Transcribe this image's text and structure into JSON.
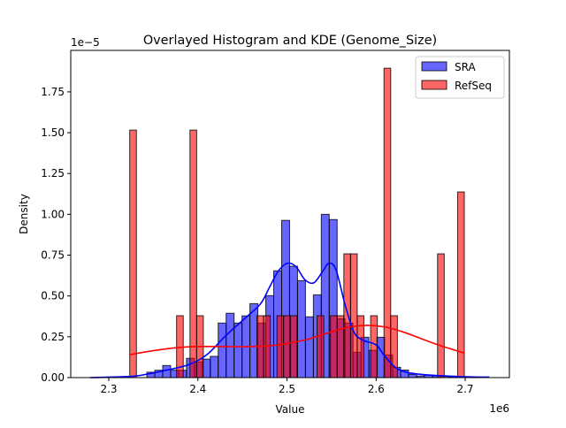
{
  "chart_data": {
    "type": "bar",
    "title": "Overlayed Histogram and KDE (Genome_Size)",
    "xlabel": "Value",
    "ylabel": "Density",
    "x_offset_label": "1e6",
    "y_offset_label": "1e−5",
    "xlim": [
      2.2573,
      2.7496
    ],
    "ylim": [
      0,
      2.004
    ],
    "x_ticks": [
      2.3,
      2.4,
      2.5,
      2.6,
      2.7
    ],
    "x_tick_labels": [
      "2.3",
      "2.4",
      "2.5",
      "2.6",
      "2.7"
    ],
    "y_ticks": [
      0,
      0.25,
      0.5,
      0.75,
      1.0,
      1.25,
      1.5,
      1.75
    ],
    "y_tick_labels": [
      "0.00",
      "0.25",
      "0.50",
      "0.75",
      "1.00",
      "1.25",
      "1.50",
      "1.75"
    ],
    "grid": false,
    "legend_position": "top-right",
    "series": [
      {
        "name": "SRA",
        "color": "#0000ff",
        "fill_alpha": 0.6,
        "bin_start": 2.3427,
        "bin_width": 0.0089,
        "values": [
          0.033,
          0.045,
          0.074,
          0.045,
          0.045,
          0.118,
          0.096,
          0.113,
          0.13,
          0.334,
          0.394,
          0.334,
          0.378,
          0.453,
          0.334,
          0.502,
          0.654,
          0.963,
          0.682,
          0.594,
          0.372,
          0.507,
          1.0,
          0.968,
          0.36,
          0.334,
          0.155,
          0.247,
          0.167,
          0.247,
          0.139,
          0.063,
          0.046,
          0.02,
          0.01,
          0.015,
          0.012,
          0.008,
          0.005,
          0.004,
          0.003,
          0.002,
          0.002
        ],
        "kde": {
          "x": [
            2.279,
            2.3,
            2.33,
            2.36,
            2.39,
            2.41,
            2.43,
            2.45,
            2.47,
            2.48,
            2.49,
            2.5,
            2.51,
            2.52,
            2.53,
            2.54,
            2.547,
            2.555,
            2.565,
            2.575,
            2.585,
            2.6,
            2.61,
            2.625,
            2.65,
            2.7,
            2.727
          ],
          "y": [
            0.0,
            0.003,
            0.01,
            0.04,
            0.08,
            0.14,
            0.25,
            0.35,
            0.45,
            0.55,
            0.65,
            0.7,
            0.68,
            0.6,
            0.58,
            0.65,
            0.7,
            0.66,
            0.45,
            0.28,
            0.23,
            0.2,
            0.13,
            0.05,
            0.02,
            0.005,
            0.003
          ]
        }
      },
      {
        "name": "RefSeq",
        "color": "#ff0000",
        "fill_alpha": 0.6,
        "bin_start": 2.3235,
        "bin_width": 0.00751,
        "values": [
          1.516,
          0,
          0,
          0,
          0,
          0,
          0,
          0.379,
          0,
          1.516,
          0.379,
          0,
          0,
          0,
          0,
          0,
          0,
          0,
          0,
          0.379,
          0.379,
          0,
          0.379,
          0.379,
          0.379,
          0,
          0,
          0,
          0.379,
          0,
          0.379,
          0.379,
          0.758,
          0.758,
          0.379,
          0,
          0.379,
          0,
          1.895,
          0.379,
          0,
          0,
          0,
          0,
          0,
          0,
          0.758,
          0,
          0,
          1.137
        ],
        "kde": {
          "x": [
            2.323,
            2.35,
            2.38,
            2.4,
            2.43,
            2.46,
            2.49,
            2.52,
            2.55,
            2.57,
            2.59,
            2.61,
            2.63,
            2.65,
            2.67,
            2.699
          ],
          "y": [
            0.14,
            0.165,
            0.185,
            0.19,
            0.19,
            0.19,
            0.2,
            0.23,
            0.28,
            0.31,
            0.32,
            0.31,
            0.28,
            0.24,
            0.2,
            0.15
          ]
        }
      }
    ]
  }
}
